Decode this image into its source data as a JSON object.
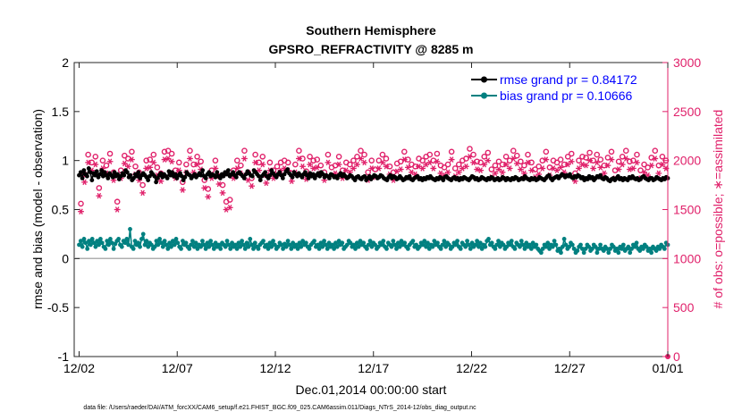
{
  "chart_data": {
    "type": "line",
    "title_line1": "Southern Hemisphere",
    "title_line2": "GPSRO_REFRACTIVITY @ 8285 m",
    "xlabel": "Dec.01,2014 00:00:00 start",
    "ylabel_left": "rmse and bias (model - observation)",
    "ylabel_right": "# of obs: o=possible; ∗=assimilated",
    "footer": "data file: /Users/raeder/DAI/ATM_forcXX/CAM6_setup/f.e21.FHIST_BGC.f09_025.CAM6assim.011/Diags_NTrS_2014-12/obs_diag_output.nc",
    "x_tick_labels": [
      "12/02",
      "12/07",
      "12/12",
      "12/17",
      "12/22",
      "12/27",
      "01/01"
    ],
    "x_tick_days": [
      1,
      6,
      11,
      16,
      21,
      26,
      31
    ],
    "xlim_days": [
      0.75,
      31
    ],
    "ylim_left": [
      -1,
      2
    ],
    "ylim_right": [
      0,
      3000
    ],
    "yticks_left": [
      "-1",
      "-0.5",
      "0",
      "0.5",
      "1",
      "1.5",
      "2"
    ],
    "yticks_left_values": [
      -1,
      -0.5,
      0,
      0.5,
      1,
      1.5,
      2
    ],
    "yticks_right": [
      "0",
      "500",
      "1000",
      "1500",
      "2000",
      "2500",
      "3000"
    ],
    "yticks_right_values": [
      0,
      500,
      1000,
      1500,
      2000,
      2500,
      3000
    ],
    "legend": [
      {
        "label": "rmse grand pr = 0.84172",
        "color": "#000000",
        "text_color": "#0000ff"
      },
      {
        "label": "bias grand pr = 0.10666",
        "color": "#008080",
        "text_color": "#0000ff"
      }
    ],
    "colors": {
      "rmse": "#000000",
      "bias": "#008080",
      "obs": "#e0206a",
      "zero_line": "#b0b0b0",
      "right_axis": "#e0206a",
      "legend_text": "#0000ff"
    },
    "series": [
      {
        "name": "rmse",
        "values": [
          0.85,
          0.88,
          0.82,
          0.9,
          0.86,
          0.84,
          0.92,
          0.88,
          0.8,
          0.87,
          0.85,
          0.89,
          0.83,
          0.86,
          0.9,
          0.84,
          0.88,
          0.85,
          0.82,
          0.87,
          0.85,
          0.83,
          0.88,
          0.84,
          0.86,
          0.81,
          0.84,
          0.87,
          0.85,
          0.9,
          0.88,
          0.83,
          0.85,
          0.8,
          0.82,
          0.86,
          0.84,
          0.88,
          0.82,
          0.85,
          0.87,
          0.85,
          0.83,
          0.8,
          0.84,
          0.88,
          0.86,
          0.84,
          0.78,
          0.82,
          0.85,
          0.87,
          0.83,
          0.86,
          0.84,
          0.82,
          0.89,
          0.85,
          0.88,
          0.84,
          0.86,
          0.82,
          0.85,
          0.87,
          0.84,
          0.8,
          0.83,
          0.88,
          0.86,
          0.85,
          0.82,
          0.84,
          0.86,
          0.83,
          0.85,
          0.87,
          0.85,
          0.9,
          0.84,
          0.82,
          0.86,
          0.88,
          0.84,
          0.86,
          0.85,
          0.83,
          0.88,
          0.84,
          0.82,
          0.86,
          0.84,
          0.88,
          0.86,
          0.9,
          0.84,
          0.86,
          0.88,
          0.85,
          0.83,
          0.87,
          0.88,
          0.86,
          0.84,
          0.82,
          0.86,
          0.89,
          0.87,
          0.85,
          0.84,
          0.9,
          0.88,
          0.86,
          0.84,
          0.8,
          0.84,
          0.86,
          0.88,
          0.84,
          0.82,
          0.85,
          0.9,
          0.87,
          0.85,
          0.83,
          0.86,
          0.88,
          0.85,
          0.82,
          0.86,
          0.89,
          0.91,
          0.87,
          0.85,
          0.83,
          0.88,
          0.86,
          0.84,
          0.87,
          0.85,
          0.83,
          0.86,
          0.88,
          0.85,
          0.82,
          0.87,
          0.84,
          0.86,
          0.82,
          0.85,
          0.87,
          0.84,
          0.88,
          0.86,
          0.83,
          0.85,
          0.84,
          0.82,
          0.86,
          0.85,
          0.83,
          0.84,
          0.82,
          0.85,
          0.87,
          0.84,
          0.86,
          0.84,
          0.82,
          0.83,
          0.85,
          0.84,
          0.82,
          0.8,
          0.83,
          0.84,
          0.82,
          0.81,
          0.83,
          0.84,
          0.8,
          0.82,
          0.84,
          0.81,
          0.83,
          0.85,
          0.84,
          0.82,
          0.83,
          0.85,
          0.84,
          0.82,
          0.81,
          0.8,
          0.83,
          0.85,
          0.82,
          0.84,
          0.83,
          0.81,
          0.82,
          0.84,
          0.82,
          0.8,
          0.81,
          0.83,
          0.82,
          0.84,
          0.81,
          0.8,
          0.82,
          0.83,
          0.84,
          0.81,
          0.82,
          0.8,
          0.82,
          0.81,
          0.83,
          0.82,
          0.84,
          0.82,
          0.81,
          0.8,
          0.82,
          0.81,
          0.83,
          0.82,
          0.8,
          0.83,
          0.84,
          0.82,
          0.81,
          0.8,
          0.82,
          0.83,
          0.81,
          0.82,
          0.8,
          0.82,
          0.81,
          0.83,
          0.82,
          0.81,
          0.8,
          0.82,
          0.84,
          0.83,
          0.81,
          0.82,
          0.8,
          0.81,
          0.83,
          0.82,
          0.81,
          0.8,
          0.82,
          0.81,
          0.83,
          0.82,
          0.8,
          0.81,
          0.82,
          0.8,
          0.81,
          0.83,
          0.82,
          0.8,
          0.82,
          0.81,
          0.8,
          0.82,
          0.81,
          0.83,
          0.82,
          0.8,
          0.81,
          0.82,
          0.81,
          0.84,
          0.82,
          0.81,
          0.8,
          0.82,
          0.81,
          0.82,
          0.8,
          0.81,
          0.83,
          0.82,
          0.81,
          0.8,
          0.82,
          0.84,
          0.85,
          0.82,
          0.8,
          0.82,
          0.83,
          0.84,
          0.82,
          0.84,
          0.86,
          0.85,
          0.83,
          0.85,
          0.84,
          0.86,
          0.83,
          0.82,
          0.84,
          0.83,
          0.85,
          0.84,
          0.82,
          0.83,
          0.8,
          0.82,
          0.81,
          0.84,
          0.82,
          0.83,
          0.8,
          0.82,
          0.84,
          0.83,
          0.85,
          0.82,
          0.81,
          0.83,
          0.82,
          0.8,
          0.79,
          0.81,
          0.82,
          0.8,
          0.82,
          0.84,
          0.81,
          0.82,
          0.8,
          0.82,
          0.81,
          0.8,
          0.83,
          0.82,
          0.84,
          0.82,
          0.81,
          0.82,
          0.8,
          0.81,
          0.83,
          0.84,
          0.82,
          0.81,
          0.8,
          0.82,
          0.82,
          0.8,
          0.81,
          0.83,
          0.82,
          0.81,
          0.8,
          0.82,
          0.81,
          0.83,
          0.82
        ]
      },
      {
        "name": "bias",
        "values": [
          0.14,
          0.18,
          0.12,
          0.2,
          0.16,
          0.1,
          0.18,
          0.14,
          0.2,
          0.16,
          0.12,
          0.18,
          0.14,
          0.2,
          0.16,
          0.12,
          0.1,
          0.18,
          0.14,
          0.2,
          0.16,
          0.1,
          0.15,
          0.18,
          0.2,
          0.14,
          0.12,
          0.18,
          0.16,
          0.2,
          0.14,
          0.3,
          0.12,
          0.1,
          0.18,
          0.14,
          0.16,
          0.12,
          0.2,
          0.25,
          0.14,
          0.18,
          0.12,
          0.16,
          0.14,
          0.1,
          0.12,
          0.18,
          0.14,
          0.2,
          0.16,
          0.12,
          0.18,
          0.14,
          0.1,
          0.16,
          0.12,
          0.18,
          0.14,
          0.2,
          0.16,
          0.12,
          0.1,
          0.18,
          0.14,
          0.16,
          0.12,
          0.1,
          0.14,
          0.18,
          0.12,
          0.16,
          0.1,
          0.14,
          0.12,
          0.18,
          0.14,
          0.1,
          0.16,
          0.12,
          0.18,
          0.14,
          0.1,
          0.16,
          0.12,
          0.14,
          0.1,
          0.16,
          0.14,
          0.12,
          0.18,
          0.14,
          0.1,
          0.16,
          0.12,
          0.14,
          0.1,
          0.16,
          0.12,
          0.18,
          0.14,
          0.1,
          0.16,
          0.12,
          0.2,
          0.14,
          0.1,
          0.16,
          0.12,
          0.1,
          0.14,
          0.16,
          0.18,
          0.12,
          0.14,
          0.1,
          0.16,
          0.12,
          0.18,
          0.14,
          0.1,
          0.12,
          0.16,
          0.14,
          0.1,
          0.15,
          0.12,
          0.18,
          0.14,
          0.1,
          0.16,
          0.12,
          0.14,
          0.1,
          0.16,
          0.12,
          0.18,
          0.14,
          0.16,
          0.12,
          0.1,
          0.14,
          0.16,
          0.18,
          0.12,
          0.14,
          0.1,
          0.16,
          0.12,
          0.18,
          0.14,
          0.1,
          0.16,
          0.12,
          0.14,
          0.1,
          0.16,
          0.12,
          0.18,
          0.14,
          0.16,
          0.1,
          0.12,
          0.14,
          0.18,
          0.16,
          0.12,
          0.14,
          0.1,
          0.16,
          0.12,
          0.18,
          0.14,
          0.16,
          0.12,
          0.1,
          0.14,
          0.18,
          0.12,
          0.16,
          0.14,
          0.1,
          0.12,
          0.16,
          0.14,
          0.18,
          0.12,
          0.1,
          0.16,
          0.14,
          0.12,
          0.18,
          0.14,
          0.1,
          0.16,
          0.12,
          0.18,
          0.14,
          0.16,
          0.12,
          0.1,
          0.14,
          0.16,
          0.18,
          0.12,
          0.14,
          0.1,
          0.12,
          0.16,
          0.14,
          0.18,
          0.12,
          0.16,
          0.1,
          0.14,
          0.12,
          0.18,
          0.14,
          0.16,
          0.12,
          0.1,
          0.14,
          0.18,
          0.12,
          0.16,
          0.14,
          0.1,
          0.12,
          0.16,
          0.14,
          0.18,
          0.12,
          0.1,
          0.16,
          0.14,
          0.12,
          0.18,
          0.14,
          0.1,
          0.16,
          0.12,
          0.14,
          0.18,
          0.12,
          0.16,
          0.1,
          0.14,
          0.12,
          0.18,
          0.2,
          0.14,
          0.16,
          0.12,
          0.1,
          0.14,
          0.18,
          0.12,
          0.16,
          0.14,
          0.1,
          0.12,
          0.16,
          0.14,
          0.18,
          0.12,
          0.1,
          0.16,
          0.14,
          0.12,
          0.18,
          0.14,
          0.1,
          0.16,
          0.12,
          0.14,
          0.1,
          0.16,
          0.12,
          0.14,
          0.1,
          0.08,
          0.06,
          0.1,
          0.14,
          0.12,
          0.16,
          0.1,
          0.14,
          0.12,
          0.18,
          0.14,
          0.08,
          0.1,
          0.06,
          0.12,
          0.2,
          0.14,
          0.1,
          0.12,
          0.16,
          0.14,
          0.1,
          0.06,
          0.08,
          0.12,
          0.14,
          0.1,
          0.06,
          0.1,
          0.14,
          0.12,
          0.08,
          0.1,
          0.14,
          0.12,
          0.06,
          0.1,
          0.14,
          0.1,
          0.08,
          0.12,
          0.1,
          0.06,
          0.1,
          0.14,
          0.12,
          0.08,
          0.1,
          0.06,
          0.12,
          0.1,
          0.14,
          0.08,
          0.1,
          0.12,
          0.06,
          0.1,
          0.14,
          0.12,
          0.16,
          0.1,
          0.08,
          0.12,
          0.1,
          0.14,
          0.12,
          0.08,
          0.1,
          0.06,
          0.12,
          0.1,
          0.08,
          0.12,
          0.1,
          0.14,
          0.12,
          0.1,
          0.16,
          0.14
        ]
      },
      {
        "name": "possible_obs",
        "values": [
          1560,
          1860,
          2060,
          1980,
          2040,
          1720,
          2000,
          1950,
          2070,
          1880,
          1580,
          1900,
          2050,
          2020,
          2090,
          1940,
          1880,
          1750,
          2000,
          2010,
          2060,
          1930,
          1870,
          2090,
          2100,
          2070,
          1900,
          1980,
          1780,
          1960,
          2100,
          1960,
          2040,
          1990,
          1800,
          1710,
          1900,
          2000,
          1840,
          1750,
          1580,
          1600,
          1900,
          2000,
          1950,
          2100,
          1880,
          1820,
          2060,
          1980,
          2040,
          1850,
          1980,
          1900,
          1940,
          1980,
          2000,
          1980,
          1870,
          1960,
          2100,
          2020,
          1890,
          2040,
          2000,
          2010,
          1950,
          1880,
          2060,
          1930,
          1950,
          2040,
          1900,
          1980,
          1960,
          2000,
          2040,
          2100,
          2060,
          1880,
          2000,
          1910,
          2000,
          2060,
          2020,
          1940,
          1880,
          1970,
          1990,
          2090,
          2010,
          1960,
          1940,
          2020,
          2000,
          2040,
          2060,
          2000,
          2070,
          1950,
          1930,
          1960,
          2090,
          1920,
          1960,
          2000,
          2020,
          2120,
          2060,
          1990,
          1980,
          2040,
          2080,
          1910,
          1950,
          1990,
          1960,
          2040,
          2000,
          2100,
          2050,
          1990,
          1950,
          2060,
          1980,
          1910,
          1940,
          2000,
          2090,
          1930,
          2000,
          1980,
          2010,
          1960,
          2040,
          2070,
          1870,
          2000,
          2040,
          2030,
          2080,
          2000,
          2060,
          2010,
          1950,
          2030,
          2090,
          1900,
          1990,
          2040,
          2100,
          1990,
          2000,
          2060,
          1900,
          1960,
          1930,
          2030,
          2100,
          1950,
          2040,
          2000
        ]
      },
      {
        "name": "assimilated_obs",
        "values": [
          1480,
          1780,
          1980,
          1900,
          1960,
          1640,
          1920,
          1870,
          1990,
          1800,
          1500,
          1820,
          1970,
          1940,
          2010,
          1860,
          1800,
          1670,
          1920,
          1930,
          1980,
          1850,
          1790,
          2010,
          2020,
          1990,
          1820,
          1900,
          1700,
          1880,
          2020,
          1880,
          1960,
          1910,
          1720,
          1630,
          1820,
          1920,
          1760,
          1670,
          1500,
          1520,
          1820,
          1920,
          1870,
          2020,
          1800,
          1740,
          1980,
          1900,
          1960,
          1770,
          1900,
          1820,
          1860,
          1900,
          1920,
          1900,
          1790,
          1880,
          2020,
          1940,
          1810,
          1960,
          1920,
          1930,
          1870,
          1800,
          1980,
          1850,
          1870,
          1960,
          1820,
          1900,
          1880,
          1920,
          1960,
          2020,
          1980,
          1800,
          1920,
          1830,
          1920,
          1980,
          1940,
          1860,
          1800,
          1890,
          1910,
          2010,
          1930,
          1880,
          1860,
          1940,
          1920,
          1960,
          1980,
          1920,
          1990,
          1870,
          1850,
          1880,
          2010,
          1840,
          1880,
          1920,
          1940,
          2040,
          1980,
          1910,
          1900,
          1960,
          2000,
          1830,
          1870,
          1910,
          1880,
          1960,
          1920,
          2020,
          1970,
          1910,
          1870,
          1980,
          1900,
          1830,
          1860,
          1920,
          2010,
          1850,
          1920,
          1900,
          1930,
          1880,
          1960,
          1990,
          1790,
          1920,
          1960,
          1950,
          2000,
          1920,
          1980,
          1930,
          1870,
          1950,
          2010,
          1820,
          1910,
          1960,
          2020,
          1910,
          1920,
          1980,
          1820,
          1880,
          1850,
          1950,
          2020,
          1870,
          1960,
          1920
        ]
      }
    ]
  }
}
